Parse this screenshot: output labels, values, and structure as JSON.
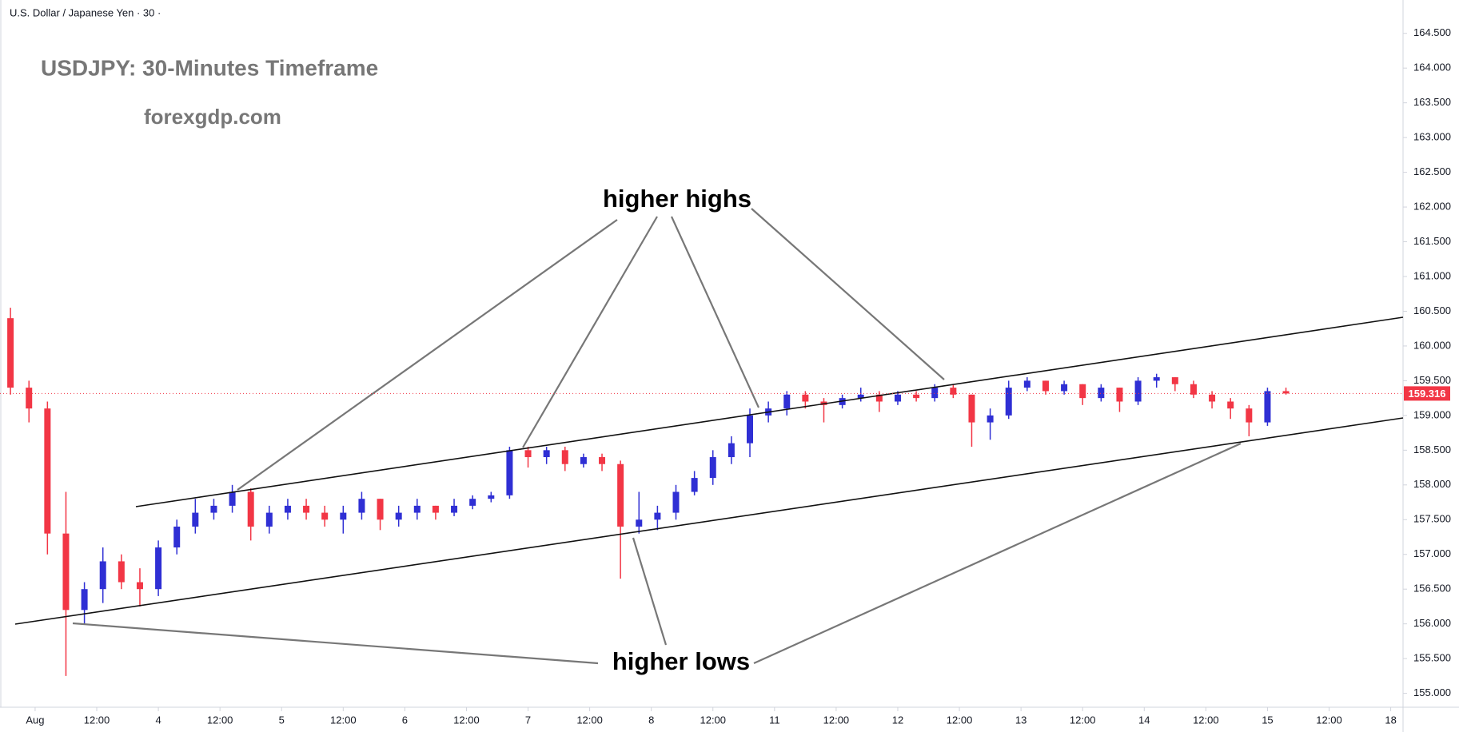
{
  "header": "U.S. Dollar / Japanese Yen · 30 ·",
  "chart_data": {
    "type": "candlestick",
    "title": "USDJPY: 30-Minutes Timeframe",
    "subtitle": "forexgdp.com",
    "annotations": [
      "higher highs",
      "higher lows"
    ],
    "up_color": "#2f2fd4",
    "down_color": "#f23645",
    "x": [
      -0.4,
      -0.1,
      0.2,
      0.5,
      0.8,
      1.1,
      1.4,
      1.7,
      2.0,
      2.3,
      2.6,
      2.9,
      3.2,
      3.5,
      3.8,
      4.1,
      4.4,
      4.7,
      5.0,
      5.3,
      5.6,
      5.9,
      6.2,
      6.5,
      6.8,
      7.1,
      7.4,
      7.7,
      8.0,
      8.3,
      8.6,
      8.9,
      9.2,
      9.5,
      9.8,
      10.1,
      10.4,
      10.7,
      11.0,
      11.3,
      11.6,
      11.9,
      12.2,
      12.5,
      12.8,
      13.1,
      13.4,
      13.7,
      14.0,
      14.3,
      14.6,
      14.9,
      15.2,
      15.5,
      15.8,
      16.1,
      16.4,
      16.7,
      17.0,
      17.3,
      17.6,
      17.9,
      18.2,
      18.5,
      18.8,
      19.1,
      19.4,
      19.7,
      20.0,
      20.3
    ],
    "open": [
      160.4,
      159.4,
      159.1,
      157.3,
      156.2,
      156.5,
      156.9,
      156.6,
      156.5,
      157.1,
      157.4,
      157.6,
      157.7,
      157.9,
      157.4,
      157.6,
      157.7,
      157.6,
      157.5,
      157.6,
      157.8,
      157.5,
      157.6,
      157.7,
      157.6,
      157.7,
      157.8,
      157.85,
      158.5,
      158.4,
      158.5,
      158.3,
      158.4,
      158.3,
      157.4,
      157.5,
      157.6,
      157.9,
      158.1,
      158.4,
      158.6,
      159.0,
      159.1,
      159.3,
      159.2,
      159.15,
      159.25,
      159.3,
      159.2,
      159.3,
      159.25,
      159.4,
      159.3,
      158.9,
      159.0,
      159.4,
      159.5,
      159.35,
      159.45,
      159.25,
      159.4,
      159.2,
      159.5,
      159.55,
      159.45,
      159.3,
      159.2,
      159.1,
      158.9,
      159.35
    ],
    "high": [
      160.55,
      159.5,
      159.2,
      157.9,
      156.6,
      157.1,
      157.0,
      156.8,
      157.2,
      157.5,
      157.8,
      157.8,
      158.0,
      157.95,
      157.7,
      157.8,
      157.8,
      157.7,
      157.7,
      157.9,
      157.8,
      157.7,
      157.8,
      157.7,
      157.8,
      157.85,
      157.9,
      158.55,
      158.55,
      158.55,
      158.55,
      158.45,
      158.45,
      158.35,
      157.9,
      157.7,
      158.0,
      158.2,
      158.5,
      158.7,
      159.1,
      159.2,
      159.35,
      159.35,
      159.25,
      159.3,
      159.4,
      159.35,
      159.35,
      159.35,
      159.45,
      159.45,
      159.3,
      159.1,
      159.5,
      159.55,
      159.5,
      159.5,
      159.45,
      159.45,
      159.4,
      159.55,
      159.6,
      159.55,
      159.5,
      159.35,
      159.25,
      159.15,
      159.4,
      159.4
    ],
    "low": [
      159.3,
      158.9,
      157.0,
      155.25,
      156.0,
      156.3,
      156.5,
      156.25,
      156.4,
      157.0,
      157.3,
      157.5,
      157.6,
      157.2,
      157.3,
      157.5,
      157.5,
      157.4,
      157.3,
      157.5,
      157.35,
      157.4,
      157.5,
      157.5,
      157.55,
      157.65,
      157.75,
      157.8,
      158.25,
      158.3,
      158.2,
      158.25,
      158.2,
      156.65,
      157.3,
      157.35,
      157.5,
      157.85,
      158.0,
      158.3,
      158.4,
      158.9,
      159.0,
      159.1,
      158.9,
      159.1,
      159.2,
      159.05,
      159.15,
      159.2,
      159.2,
      159.25,
      158.55,
      158.65,
      158.95,
      159.35,
      159.3,
      159.3,
      159.15,
      159.2,
      159.05,
      159.15,
      159.4,
      159.35,
      159.25,
      159.1,
      158.95,
      158.7,
      158.85,
      159.3
    ],
    "close": [
      159.4,
      159.1,
      157.3,
      156.2,
      156.5,
      156.9,
      156.6,
      156.5,
      157.1,
      157.4,
      157.6,
      157.7,
      157.9,
      157.4,
      157.6,
      157.7,
      157.6,
      157.5,
      157.6,
      157.8,
      157.5,
      157.6,
      157.7,
      157.6,
      157.7,
      157.8,
      157.85,
      158.5,
      158.4,
      158.5,
      158.3,
      158.4,
      158.3,
      157.4,
      157.5,
      157.6,
      157.9,
      158.1,
      158.4,
      158.6,
      159.0,
      159.1,
      159.3,
      159.2,
      159.15,
      159.25,
      159.3,
      159.2,
      159.3,
      159.25,
      159.4,
      159.3,
      158.9,
      159.0,
      159.4,
      159.5,
      159.35,
      159.45,
      159.25,
      159.4,
      159.2,
      159.5,
      159.55,
      159.45,
      159.3,
      159.2,
      159.1,
      158.9,
      159.35,
      159.316
    ],
    "last_price": 159.316,
    "last_price_color": "#f23645",
    "xlim": [
      -0.57,
      22.2
    ],
    "xticks": [
      {
        "value": 0,
        "label": "Aug"
      },
      {
        "value": 1,
        "label": "12:00"
      },
      {
        "value": 2,
        "label": "4"
      },
      {
        "value": 3,
        "label": "12:00"
      },
      {
        "value": 4,
        "label": "5"
      },
      {
        "value": 5,
        "label": "12:00"
      },
      {
        "value": 6,
        "label": "6"
      },
      {
        "value": 7,
        "label": "12:00"
      },
      {
        "value": 8,
        "label": "7"
      },
      {
        "value": 9,
        "label": "12:00"
      },
      {
        "value": 10,
        "label": "8"
      },
      {
        "value": 11,
        "label": "12:00"
      },
      {
        "value": 12,
        "label": "11"
      },
      {
        "value": 13,
        "label": "12:00"
      },
      {
        "value": 14,
        "label": "12"
      },
      {
        "value": 15,
        "label": "12:00"
      },
      {
        "value": 16,
        "label": "13"
      },
      {
        "value": 17,
        "label": "12:00"
      },
      {
        "value": 18,
        "label": "14"
      },
      {
        "value": 19,
        "label": "12:00"
      },
      {
        "value": 20,
        "label": "15"
      },
      {
        "value": 21,
        "label": "12:00"
      },
      {
        "value": 22,
        "label": "18"
      }
    ],
    "ylim": [
      154.8,
      164.98
    ],
    "yticks": [
      {
        "value": 155,
        "label": "155.000"
      },
      {
        "value": 155.5,
        "label": "155.500"
      },
      {
        "value": 156,
        "label": "156.000"
      },
      {
        "value": 156.5,
        "label": "156.500"
      },
      {
        "value": 157,
        "label": "157.000"
      },
      {
        "value": 157.5,
        "label": "157.500"
      },
      {
        "value": 158,
        "label": "158.000"
      },
      {
        "value": 158.5,
        "label": "158.500"
      },
      {
        "value": 159,
        "label": "159.000"
      },
      {
        "value": 159.5,
        "label": "159.500"
      },
      {
        "value": 160,
        "label": "160.000"
      },
      {
        "value": 160.5,
        "label": "160.500"
      },
      {
        "value": 161,
        "label": "161.000"
      },
      {
        "value": 161.5,
        "label": "161.500"
      },
      {
        "value": 162,
        "label": "162.000"
      },
      {
        "value": 162.5,
        "label": "162.500"
      },
      {
        "value": 163,
        "label": "163.000"
      },
      {
        "value": 163.5,
        "label": "163.500"
      },
      {
        "value": 164,
        "label": "164.000"
      },
      {
        "value": 164.5,
        "label": "164.500"
      }
    ]
  }
}
